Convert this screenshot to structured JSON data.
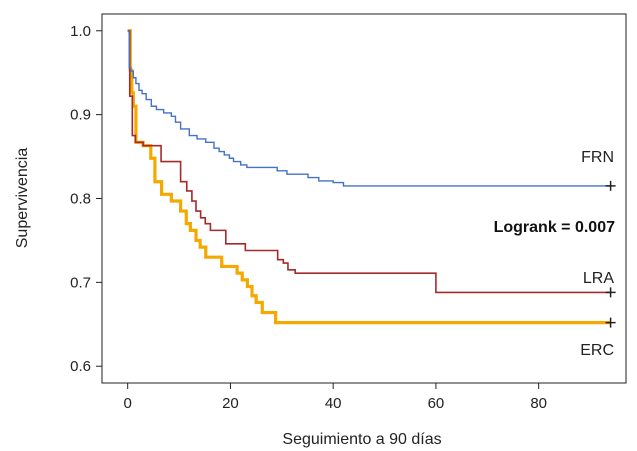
{
  "chart_data": {
    "type": "line",
    "title": "",
    "xlabel": "Seguimiento a 90 días",
    "ylabel": "Supervivencia",
    "xlim": [
      -5,
      97
    ],
    "ylim": [
      0.58,
      1.02
    ],
    "xticks": [
      {
        "value": 0,
        "label": "0"
      },
      {
        "value": 20,
        "label": "20"
      },
      {
        "value": 40,
        "label": "40"
      },
      {
        "value": 60,
        "label": "60"
      },
      {
        "value": 80,
        "label": "80"
      }
    ],
    "yticks": [
      {
        "value": 0.6,
        "label": "0.6"
      },
      {
        "value": 0.7,
        "label": "0.7"
      },
      {
        "value": 0.8,
        "label": "0.8"
      },
      {
        "value": 0.9,
        "label": "0.9"
      },
      {
        "value": 1.0,
        "label": "1.0"
      }
    ],
    "grid": false,
    "annotation": "Logrank = 0.007",
    "series": [
      {
        "name": "FRN",
        "color": "#4472c4",
        "x": [
          0,
          0.3,
          0.6,
          1.1,
          1.6,
          2.2,
          2.8,
          3.6,
          4.6,
          5.6,
          7,
          8.5,
          9.3,
          10.3,
          12,
          13.5,
          15.2,
          16.8,
          17.8,
          18.8,
          19.8,
          20.6,
          22,
          23.2,
          25.1,
          27,
          29.1,
          31,
          33.1,
          35.1,
          37.2,
          39,
          40,
          42,
          94
        ],
        "y": [
          1.0,
          0.956,
          0.952,
          0.944,
          0.937,
          0.929,
          0.925,
          0.918,
          0.91,
          0.906,
          0.902,
          0.898,
          0.891,
          0.883,
          0.875,
          0.871,
          0.867,
          0.86,
          0.856,
          0.852,
          0.848,
          0.844,
          0.84,
          0.837,
          0.837,
          0.837,
          0.833,
          0.829,
          0.829,
          0.825,
          0.821,
          0.821,
          0.819,
          0.815,
          0.815
        ]
      },
      {
        "name": "LRA",
        "color": "#a52a2a",
        "x": [
          0,
          0.4,
          0.9,
          1.5,
          2.2,
          3,
          5,
          6.5,
          9.5,
          10.3,
          11.5,
          12.5,
          13.3,
          14.2,
          15.1,
          16.1,
          19.1,
          22.9,
          28,
          29.2,
          30.3,
          31.2,
          32.6,
          33.2,
          35.5,
          40,
          59.5,
          60,
          94
        ],
        "y": [
          1.0,
          0.922,
          0.875,
          0.867,
          0.867,
          0.863,
          0.863,
          0.844,
          0.844,
          0.82,
          0.809,
          0.797,
          0.785,
          0.777,
          0.77,
          0.762,
          0.746,
          0.738,
          0.738,
          0.727,
          0.723,
          0.715,
          0.711,
          0.711,
          0.711,
          0.711,
          0.711,
          0.688,
          0.688
        ]
      },
      {
        "name": "ERC",
        "color": "#f5a800",
        "x": [
          0,
          0.5,
          0.8,
          1.1,
          1.6,
          2.2,
          3,
          4.5,
          5.3,
          6.6,
          8.5,
          10.3,
          11.4,
          12.2,
          13.3,
          14.1,
          15.2,
          16.7,
          18.3,
          21.3,
          22.3,
          23.3,
          24.2,
          25,
          26.2,
          27.5,
          28.8,
          94
        ],
        "y": [
          1.0,
          0.953,
          0.926,
          0.91,
          0.867,
          0.867,
          0.863,
          0.848,
          0.82,
          0.805,
          0.797,
          0.785,
          0.77,
          0.762,
          0.75,
          0.742,
          0.73,
          0.73,
          0.719,
          0.711,
          0.703,
          0.695,
          0.684,
          0.676,
          0.664,
          0.664,
          0.652,
          0.652
        ]
      }
    ]
  }
}
